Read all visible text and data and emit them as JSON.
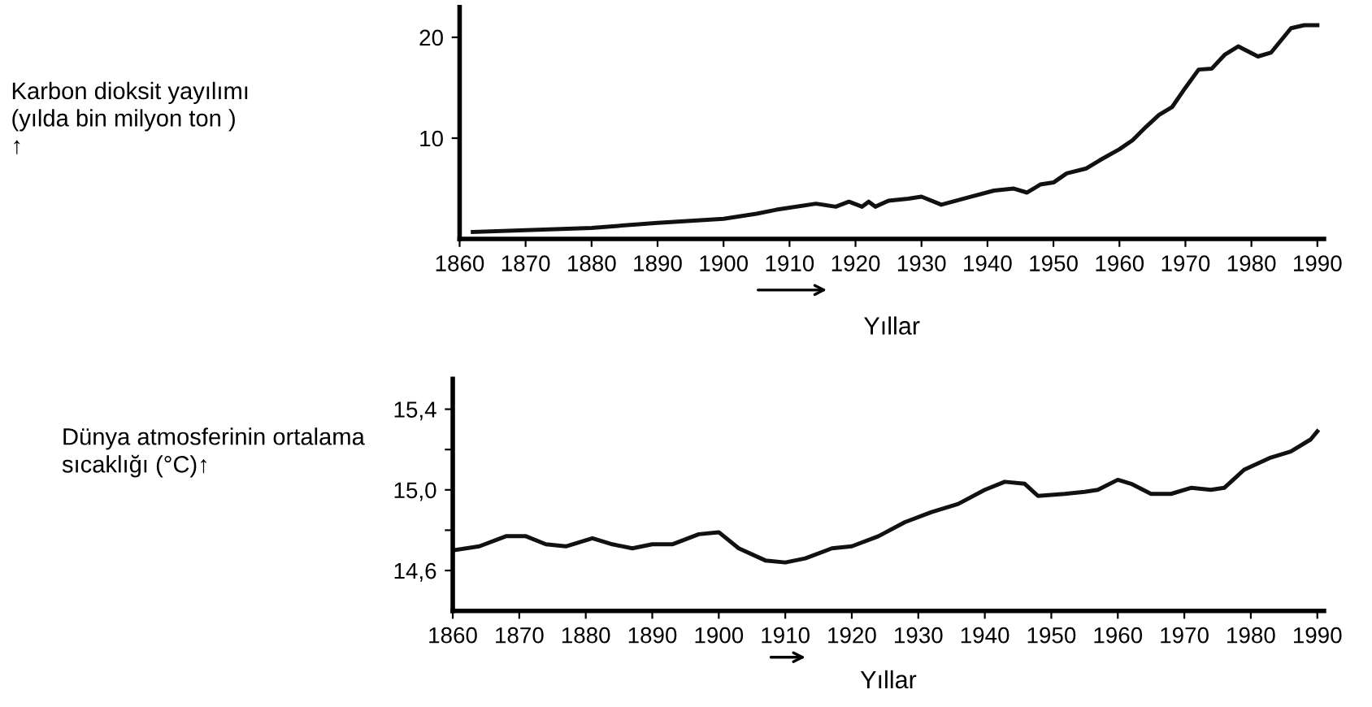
{
  "chart_data": [
    {
      "type": "line",
      "ylabel": "Karbon dioksit yayılımı\n(yılda bin milyon ton )\n↑",
      "xlabel": "Yıllar",
      "xlim": [
        1860,
        1991
      ],
      "xticks": [
        1860,
        1870,
        1880,
        1890,
        1900,
        1910,
        1920,
        1930,
        1940,
        1950,
        1960,
        1970,
        1980,
        1990
      ],
      "ylim": [
        0,
        23
      ],
      "yticks": [
        10,
        20
      ],
      "grid": false,
      "legend": false,
      "marker": "none",
      "line_style": "solid",
      "series": [
        {
          "color": "#111111",
          "x": [
            1862,
            1880,
            1890,
            1900,
            1905,
            1908,
            1914,
            1917,
            1919,
            1921,
            1922,
            1923,
            1925,
            1928,
            1930,
            1933,
            1937,
            1941,
            1944,
            1946,
            1948,
            1950,
            1952,
            1955,
            1957,
            1960,
            1962,
            1964,
            1966,
            1968,
            1970,
            1972,
            1974,
            1976,
            1978,
            1981,
            1983,
            1986,
            1988,
            1990
          ],
          "values": [
            0.7,
            1.1,
            1.6,
            2.0,
            2.5,
            2.9,
            3.5,
            3.2,
            3.7,
            3.2,
            3.7,
            3.2,
            3.8,
            4.0,
            4.2,
            3.4,
            4.1,
            4.8,
            5.0,
            4.6,
            5.4,
            5.6,
            6.5,
            7.0,
            7.8,
            8.9,
            9.8,
            11.1,
            12.3,
            13.1,
            15.0,
            16.8,
            16.9,
            18.3,
            19.1,
            18.1,
            18.5,
            20.9,
            21.2,
            21.2
          ]
        }
      ]
    },
    {
      "type": "line",
      "ylabel": "Dünya atmosferinin ortalama\nsıcaklığı (°C)↑",
      "xlabel": "Yıllar",
      "xlim": [
        1860,
        1991
      ],
      "xticks": [
        1860,
        1870,
        1880,
        1890,
        1900,
        1910,
        1920,
        1930,
        1940,
        1950,
        1960,
        1970,
        1980,
        1990
      ],
      "ylim": [
        14.4,
        15.55
      ],
      "yticks": [
        {
          "value": 14.6,
          "label": "14,6"
        },
        {
          "value": 14.8,
          "label": null
        },
        {
          "value": 15.0,
          "label": "15,0"
        },
        {
          "value": 15.2,
          "label": null
        },
        {
          "value": 15.4,
          "label": "15,4"
        }
      ],
      "grid": false,
      "legend": false,
      "marker": "none",
      "line_style": "solid",
      "series": [
        {
          "color": "#111111",
          "x": [
            1860,
            1864,
            1868,
            1871,
            1874,
            1877,
            1881,
            1884,
            1887,
            1890,
            1893,
            1897,
            1900,
            1903,
            1907,
            1910,
            1913,
            1917,
            1920,
            1924,
            1928,
            1932,
            1936,
            1940,
            1943,
            1946,
            1948,
            1952,
            1955,
            1957,
            1960,
            1962,
            1965,
            1968,
            1971,
            1974,
            1976,
            1979,
            1983,
            1986,
            1989,
            1990
          ],
          "values": [
            14.7,
            14.72,
            14.77,
            14.77,
            14.73,
            14.72,
            14.76,
            14.73,
            14.71,
            14.73,
            14.73,
            14.78,
            14.79,
            14.71,
            14.65,
            14.64,
            14.66,
            14.71,
            14.72,
            14.77,
            14.84,
            14.89,
            14.93,
            15.0,
            15.04,
            15.03,
            14.97,
            14.98,
            14.99,
            15.0,
            15.05,
            15.03,
            14.98,
            14.98,
            15.01,
            15.0,
            15.01,
            15.1,
            15.16,
            15.19,
            15.25,
            15.29
          ]
        }
      ]
    }
  ]
}
